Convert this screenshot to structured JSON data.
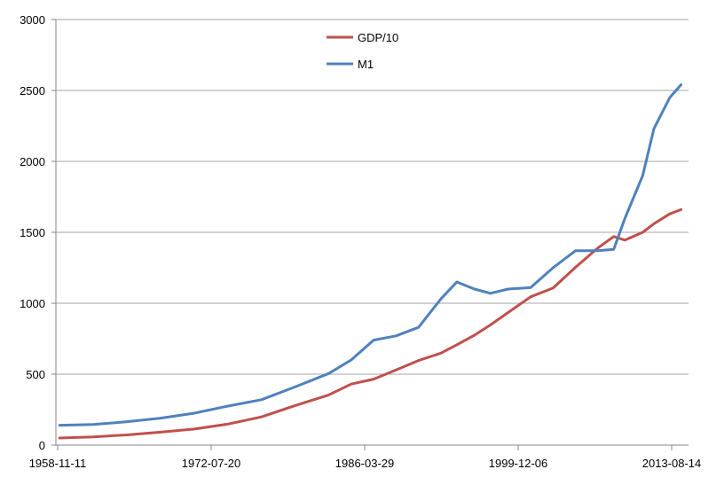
{
  "chart_data": {
    "type": "line",
    "title": "",
    "xlabel": "",
    "ylabel": "",
    "x_tick_labels": [
      "1958-11-11",
      "1972-07-20",
      "1986-03-29",
      "1999-12-06",
      "2013-08-14"
    ],
    "ylim": [
      0,
      3000
    ],
    "y_ticks": [
      0,
      500,
      1000,
      1500,
      2000,
      2500,
      3000
    ],
    "grid": "horizontal",
    "legend_position": "top-center",
    "x": [
      "1959-01",
      "1962-01",
      "1965-01",
      "1968-01",
      "1971-01",
      "1974-01",
      "1977-01",
      "1980-01",
      "1983-01",
      "1985-01",
      "1987-01",
      "1989-01",
      "1991-01",
      "1993-01",
      "1994-06",
      "1996-01",
      "1997-06",
      "1999-01",
      "2001-01",
      "2003-01",
      "2005-01",
      "2007-01",
      "2008-06",
      "2009-06",
      "2011-01",
      "2012-01",
      "2013-06",
      "2014-06"
    ],
    "series": [
      {
        "name": "GDP/10",
        "color": "#c0504d",
        "values": [
          50,
          58,
          72,
          91,
          113,
          148,
          199,
          279,
          354,
          430,
          465,
          530,
          596,
          648,
          707,
          775,
          847,
          935,
          1045,
          1107,
          1253,
          1390,
          1470,
          1445,
          1500,
          1560,
          1630,
          1660
        ]
      },
      {
        "name": "M1",
        "color": "#4f81bd",
        "values": [
          140,
          145,
          165,
          190,
          225,
          275,
          320,
          410,
          505,
          600,
          740,
          770,
          830,
          1030,
          1150,
          1100,
          1070,
          1100,
          1110,
          1250,
          1370,
          1370,
          1380,
          1600,
          1900,
          2230,
          2450,
          2540
        ]
      }
    ]
  }
}
